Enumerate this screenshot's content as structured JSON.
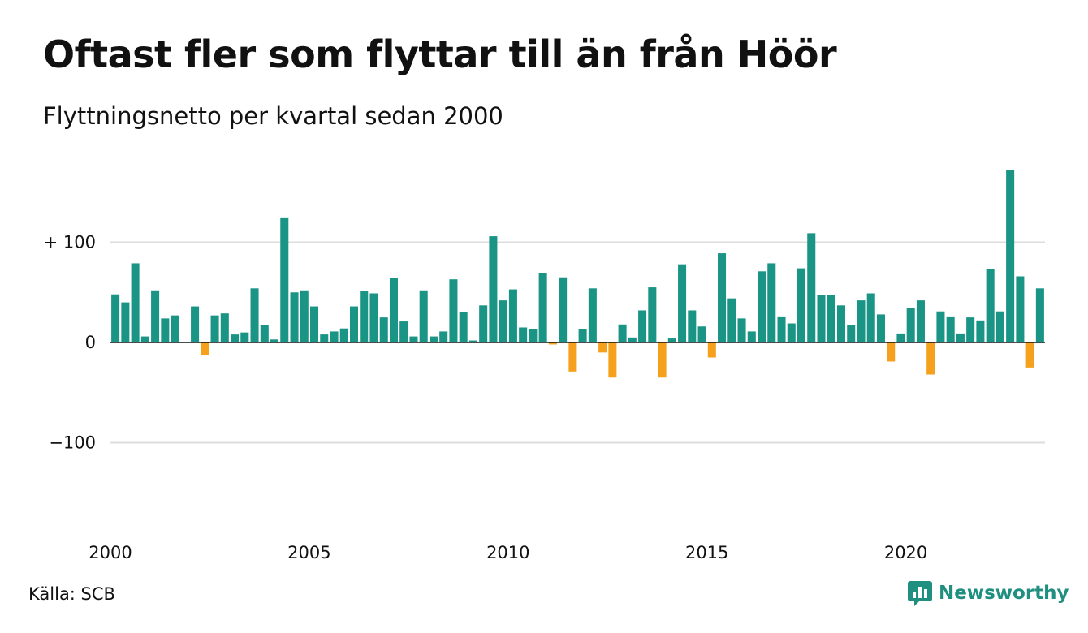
{
  "header": {
    "title": "Oftast fler som flyttar till än från Höör",
    "subtitle": "Flyttningsnetto per kvartal sedan 2000"
  },
  "footer": {
    "source": "Källa: SCB",
    "brand": "Newsworthy",
    "brand_icon": "newsworthy-logo-icon"
  },
  "chart_data": {
    "type": "bar",
    "title": "Oftast fler som flyttar till än från Höör",
    "subtitle": "Flyttningsnetto per kvartal sedan 2000",
    "xlabel": "",
    "ylabel": "",
    "x_ticks": [
      "2000",
      "2005",
      "2010",
      "2015",
      "2020"
    ],
    "y_ticks": [
      {
        "value": 100,
        "label": "+ 100"
      },
      {
        "value": 0,
        "label": "0"
      },
      {
        "value": -100,
        "label": "−100"
      }
    ],
    "ylim": [
      -190,
      175
    ],
    "grid": true,
    "colors": {
      "positive": "#1a9485",
      "negative": "#f5a11e",
      "grid": "#dddddd",
      "axis": "#111111"
    },
    "series": [
      {
        "start": "2000 Q1",
        "values": [
          48,
          40,
          79,
          6,
          52,
          24,
          27,
          0,
          36,
          -13,
          27,
          29,
          8,
          10,
          54,
          17,
          3,
          124,
          50,
          52,
          36,
          8,
          11,
          14,
          36,
          51,
          49,
          25,
          64,
          21,
          6,
          52,
          6,
          11,
          63,
          30,
          2,
          37,
          106,
          42,
          53,
          15,
          13,
          69,
          -2,
          65,
          -29,
          13,
          54,
          -10,
          -35,
          18,
          5,
          32,
          55,
          -35,
          4,
          78,
          32,
          16,
          -15,
          89,
          44,
          24,
          11,
          71,
          79,
          26,
          19,
          74,
          109,
          47,
          47,
          37,
          17,
          42,
          49,
          28,
          -19,
          9,
          34,
          42,
          -32,
          31,
          26,
          9,
          25,
          22,
          73,
          31,
          172,
          66,
          -25,
          54
        ]
      }
    ]
  }
}
